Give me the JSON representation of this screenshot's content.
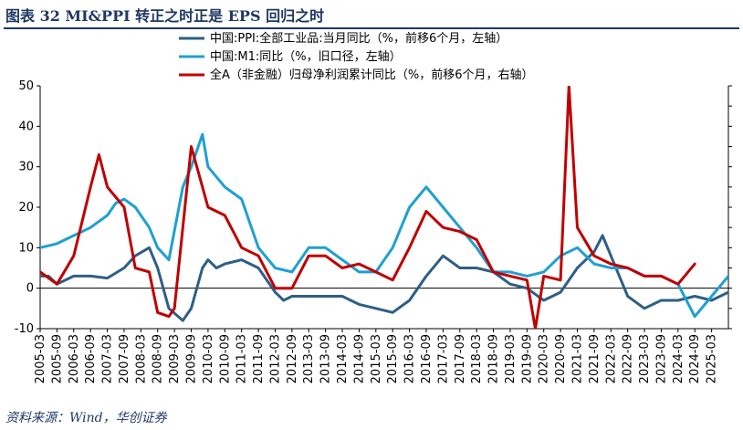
{
  "figure": {
    "title": "图表 32 MI&PPI 转正之时正是 EPS 回归之时",
    "source": "资料来源：Wind，华创证券"
  },
  "chart_data": {
    "type": "line",
    "ylim_left": [
      -10,
      50
    ],
    "ylim_right": [
      -10,
      50
    ],
    "yticks_left": [
      -10,
      0,
      10,
      20,
      30,
      40,
      50
    ],
    "ytick_labels_left": [
      "-10",
      "0",
      "10",
      "20",
      "30",
      "40",
      "50"
    ],
    "x_range": [
      "2005-03",
      "2025-09"
    ],
    "x_tick_labels": [
      "2005-03",
      "2005-09",
      "2006-03",
      "2006-09",
      "2007-03",
      "2007-09",
      "2008-03",
      "2008-09",
      "2009-03",
      "2009-09",
      "2010-03",
      "2010-09",
      "2011-03",
      "2011-09",
      "2012-03",
      "2012-09",
      "2013-03",
      "2013-09",
      "2014-03",
      "2014-09",
      "2015-03",
      "2015-09",
      "2016-03",
      "2016-09",
      "2017-03",
      "2017-09",
      "2018-03",
      "2018-09",
      "2019-03",
      "2019-09",
      "2020-03",
      "2020-09",
      "2021-03",
      "2021-09",
      "2022-03",
      "2022-09",
      "2023-03",
      "2023-09",
      "2024-03",
      "2024-09",
      "2025-03"
    ],
    "grid": false,
    "legend_position": "top",
    "series": [
      {
        "name": "中国:PPI:全部工业品:当月同比（%，前移6个月，左轴）",
        "color": "#2e5f86",
        "points": [
          [
            "2005-03",
            3
          ],
          [
            "2005-06",
            3
          ],
          [
            "2005-09",
            1
          ],
          [
            "2006-03",
            3
          ],
          [
            "2006-09",
            3
          ],
          [
            "2007-03",
            2.5
          ],
          [
            "2007-09",
            5
          ],
          [
            "2008-01",
            8
          ],
          [
            "2008-06",
            10
          ],
          [
            "2008-09",
            5
          ],
          [
            "2009-01",
            -5
          ],
          [
            "2009-06",
            -8
          ],
          [
            "2009-09",
            -5
          ],
          [
            "2010-01",
            5
          ],
          [
            "2010-03",
            7
          ],
          [
            "2010-06",
            5
          ],
          [
            "2010-09",
            6
          ],
          [
            "2011-03",
            7
          ],
          [
            "2011-09",
            5
          ],
          [
            "2012-03",
            -1
          ],
          [
            "2012-06",
            -3
          ],
          [
            "2012-09",
            -2
          ],
          [
            "2013-03",
            -2
          ],
          [
            "2013-09",
            -2
          ],
          [
            "2014-03",
            -2
          ],
          [
            "2014-09",
            -4
          ],
          [
            "2015-03",
            -5
          ],
          [
            "2015-09",
            -6
          ],
          [
            "2016-03",
            -3
          ],
          [
            "2016-09",
            3
          ],
          [
            "2017-03",
            8
          ],
          [
            "2017-09",
            5
          ],
          [
            "2018-03",
            5
          ],
          [
            "2018-09",
            4
          ],
          [
            "2019-03",
            1
          ],
          [
            "2019-09",
            0
          ],
          [
            "2020-03",
            -3
          ],
          [
            "2020-09",
            -1
          ],
          [
            "2021-03",
            5
          ],
          [
            "2021-09",
            9
          ],
          [
            "2021-12",
            13
          ],
          [
            "2022-03",
            8
          ],
          [
            "2022-06",
            3
          ],
          [
            "2022-09",
            -2
          ],
          [
            "2023-03",
            -5
          ],
          [
            "2023-09",
            -3
          ],
          [
            "2024-03",
            -3
          ],
          [
            "2024-09",
            -2
          ],
          [
            "2025-03",
            -3
          ],
          [
            "2025-09",
            -1
          ]
        ]
      },
      {
        "name": "中国:M1:同比（%，旧口径，左轴）",
        "color": "#1ea0d2",
        "points": [
          [
            "2005-03",
            10
          ],
          [
            "2005-09",
            11
          ],
          [
            "2006-03",
            13
          ],
          [
            "2006-09",
            15
          ],
          [
            "2007-03",
            18
          ],
          [
            "2007-06",
            21
          ],
          [
            "2007-09",
            22
          ],
          [
            "2008-01",
            20
          ],
          [
            "2008-06",
            15
          ],
          [
            "2008-09",
            10
          ],
          [
            "2009-01",
            7
          ],
          [
            "2009-06",
            25
          ],
          [
            "2009-09",
            30
          ],
          [
            "2010-01",
            38
          ],
          [
            "2010-03",
            30
          ],
          [
            "2010-09",
            25
          ],
          [
            "2011-03",
            22
          ],
          [
            "2011-09",
            10
          ],
          [
            "2012-03",
            5
          ],
          [
            "2012-09",
            4
          ],
          [
            "2013-03",
            10
          ],
          [
            "2013-09",
            10
          ],
          [
            "2014-03",
            7
          ],
          [
            "2014-09",
            4
          ],
          [
            "2015-03",
            4
          ],
          [
            "2015-09",
            10
          ],
          [
            "2016-03",
            20
          ],
          [
            "2016-09",
            25
          ],
          [
            "2017-03",
            20
          ],
          [
            "2017-09",
            15
          ],
          [
            "2018-03",
            10
          ],
          [
            "2018-09",
            4
          ],
          [
            "2019-03",
            4
          ],
          [
            "2019-09",
            3
          ],
          [
            "2020-03",
            4
          ],
          [
            "2020-09",
            8
          ],
          [
            "2021-03",
            10
          ],
          [
            "2021-09",
            6
          ],
          [
            "2022-03",
            5
          ],
          [
            "2022-09",
            5
          ],
          [
            "2023-03",
            3
          ],
          [
            "2023-09",
            3
          ],
          [
            "2024-03",
            1
          ],
          [
            "2024-09",
            -7
          ],
          [
            "2025-03",
            -2
          ],
          [
            "2025-09",
            3
          ]
        ]
      },
      {
        "name": "全A（非金融）归母净利润累计同比（%，前移6个月，右轴）",
        "color": "#c00000",
        "points": [
          [
            "2005-03",
            4
          ],
          [
            "2005-09",
            1
          ],
          [
            "2006-03",
            8
          ],
          [
            "2006-09",
            25
          ],
          [
            "2006-12",
            33
          ],
          [
            "2007-03",
            25
          ],
          [
            "2007-09",
            20
          ],
          [
            "2008-01",
            5
          ],
          [
            "2008-06",
            4
          ],
          [
            "2008-09",
            -6
          ],
          [
            "2009-01",
            -7
          ],
          [
            "2009-03",
            -5
          ],
          [
            "2009-06",
            15
          ],
          [
            "2009-09",
            35
          ],
          [
            "2010-01",
            25
          ],
          [
            "2010-03",
            20
          ],
          [
            "2010-09",
            18
          ],
          [
            "2011-03",
            10
          ],
          [
            "2011-09",
            8
          ],
          [
            "2012-03",
            0
          ],
          [
            "2012-09",
            0
          ],
          [
            "2013-03",
            8
          ],
          [
            "2013-09",
            8
          ],
          [
            "2014-03",
            5
          ],
          [
            "2014-09",
            6
          ],
          [
            "2015-03",
            4
          ],
          [
            "2015-09",
            2
          ],
          [
            "2016-03",
            10
          ],
          [
            "2016-09",
            19
          ],
          [
            "2017-03",
            15
          ],
          [
            "2017-09",
            14
          ],
          [
            "2018-03",
            12
          ],
          [
            "2018-09",
            4
          ],
          [
            "2019-03",
            3
          ],
          [
            "2019-09",
            2
          ],
          [
            "2019-12",
            -10
          ],
          [
            "2020-03",
            3
          ],
          [
            "2020-09",
            2
          ],
          [
            "2020-12",
            50
          ],
          [
            "2021-03",
            15
          ],
          [
            "2021-09",
            8
          ],
          [
            "2022-03",
            6
          ],
          [
            "2022-09",
            5
          ],
          [
            "2023-03",
            3
          ],
          [
            "2023-09",
            3
          ],
          [
            "2024-03",
            1
          ],
          [
            "2024-09",
            6
          ]
        ]
      }
    ]
  }
}
